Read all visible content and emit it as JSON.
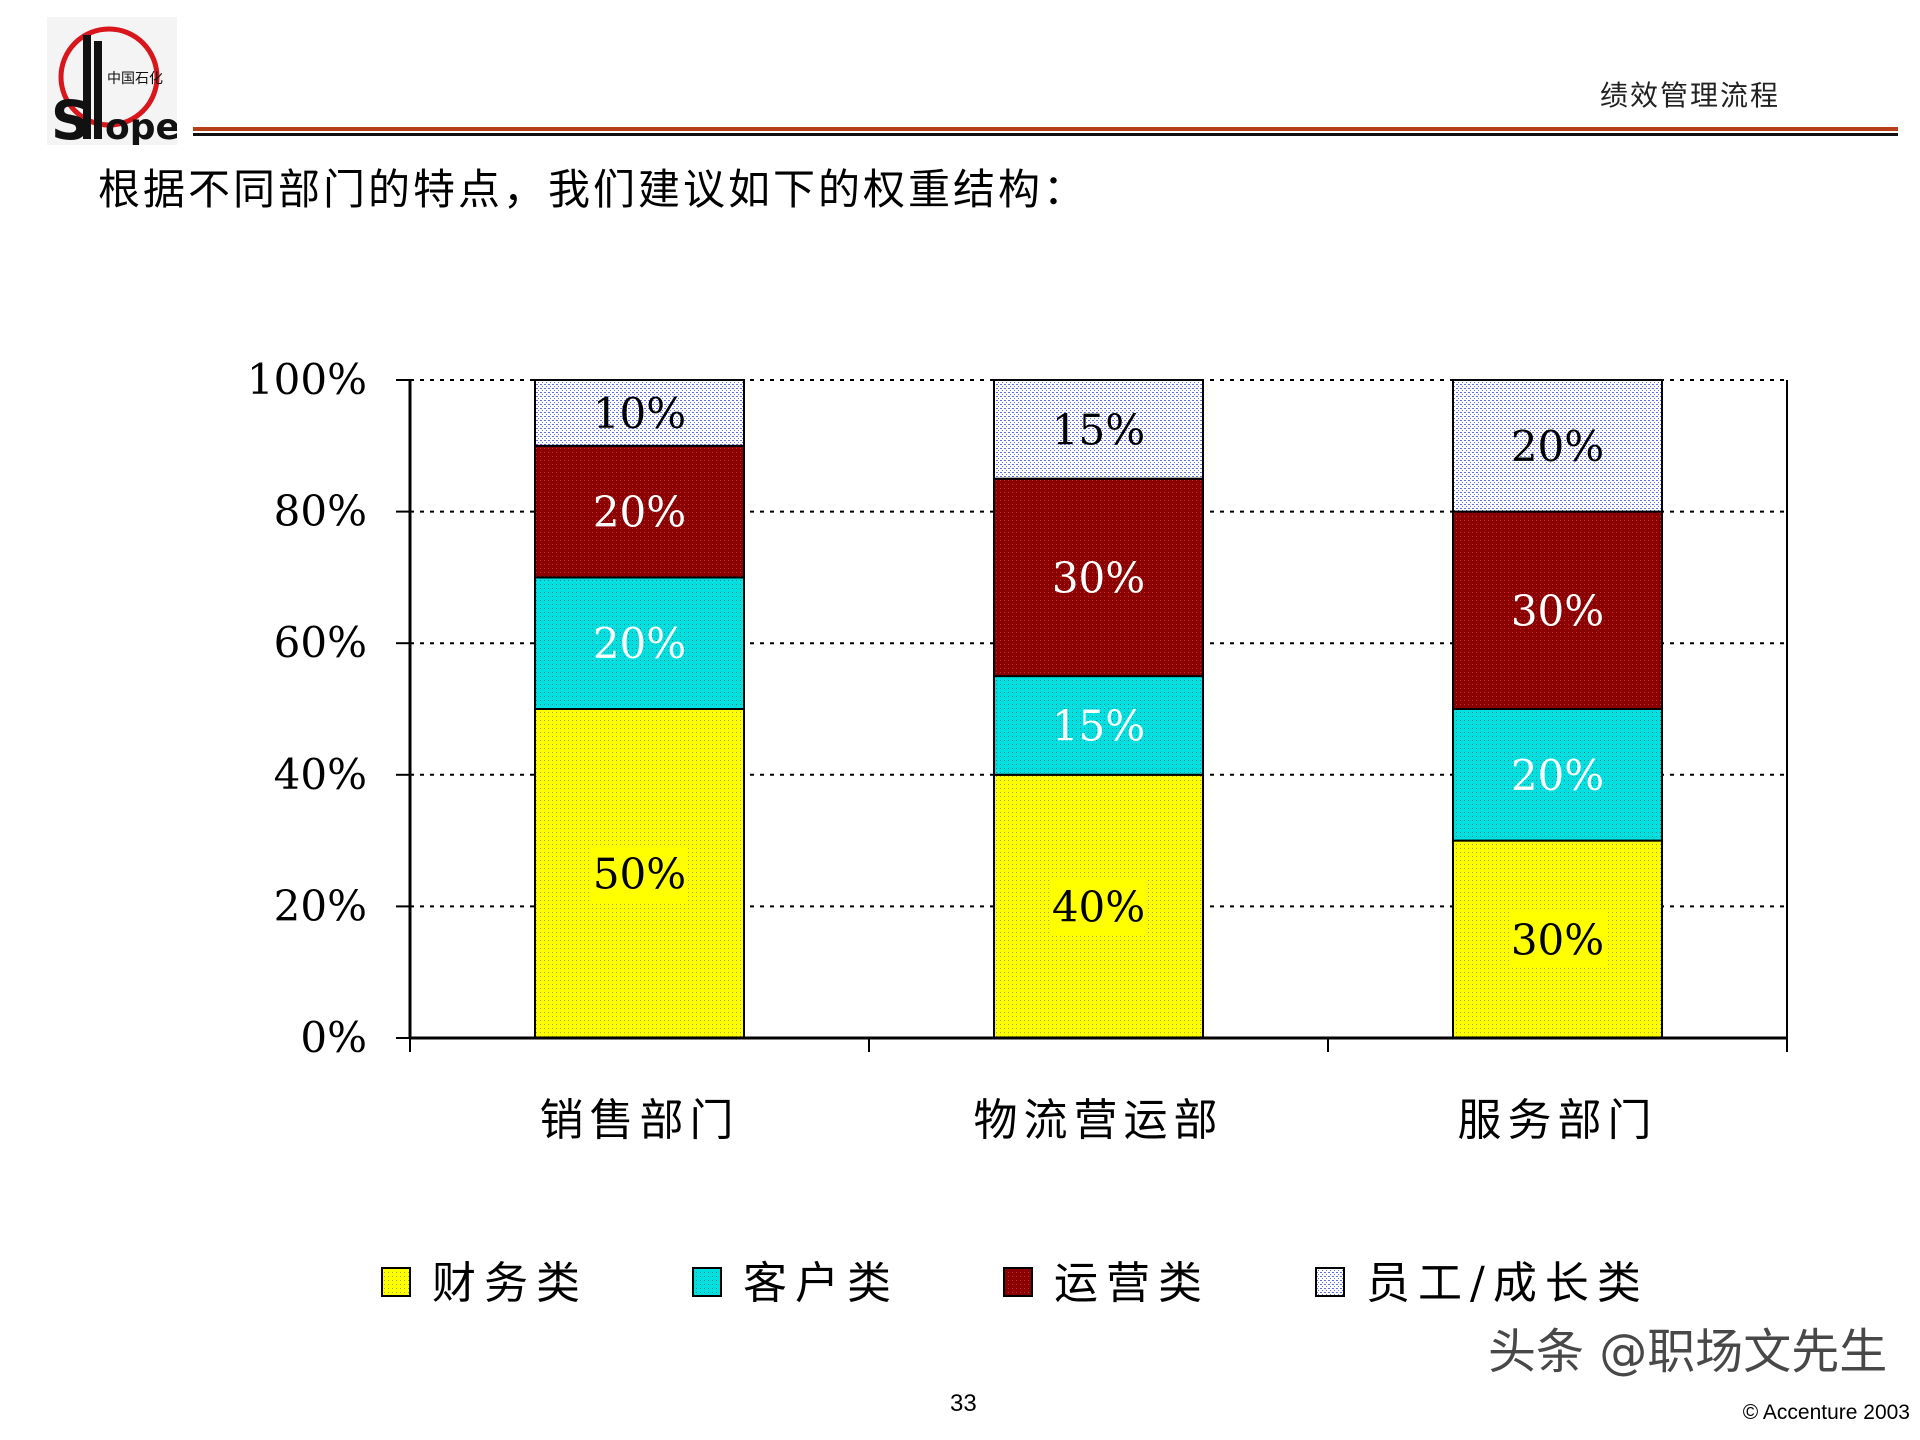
{
  "header": {
    "title": "绩效管理流程",
    "logo_text": "SINOPEC 中国石化"
  },
  "page_heading": "根据不同部门的特点，我们建议如下的权重结构：",
  "footer": {
    "page_number": "33",
    "copyright": "© Accenture 2003",
    "watermark": "头条 @职场文先生"
  },
  "colors": {
    "finance": "#ffff00",
    "customer": "#00e0e0",
    "operations": "#8b0000",
    "staff": "#c8d0ff",
    "rule": "#b5401a"
  },
  "chart_data": {
    "type": "bar",
    "stacked": true,
    "percent": true,
    "categories": [
      "销售部门",
      "物流营运部",
      "服务部门"
    ],
    "series": [
      {
        "name": "财务类",
        "values": [
          50,
          40,
          30
        ],
        "labels": [
          "50%",
          "40%",
          "30%"
        ]
      },
      {
        "name": "客户类",
        "values": [
          20,
          15,
          20
        ],
        "labels": [
          "20%",
          "15%",
          "20%"
        ]
      },
      {
        "name": "运营类",
        "values": [
          20,
          30,
          30
        ],
        "labels": [
          "20%",
          "30%",
          "30%"
        ]
      },
      {
        "name": "员工/成长类",
        "values": [
          10,
          15,
          20
        ],
        "labels": [
          "10%",
          "15%",
          "20%"
        ]
      }
    ],
    "yticks": [
      "0%",
      "20%",
      "40%",
      "60%",
      "80%",
      "100%"
    ],
    "ylim": [
      0,
      100
    ],
    "grid": "dotted horizontal",
    "legend": "bottom"
  }
}
